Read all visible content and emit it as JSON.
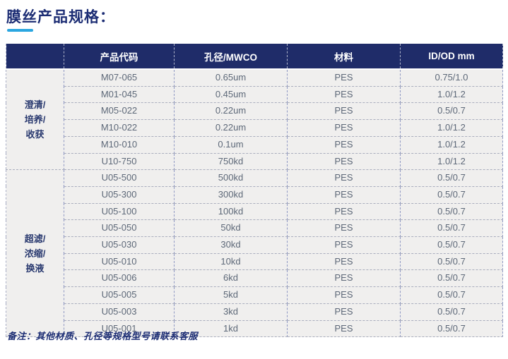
{
  "page": {
    "title": "膜丝产品规格：",
    "note": "备注：其他材质、孔径等规格型号请联系客服"
  },
  "table": {
    "columns": [
      "产品代码",
      "孔径/MWCO",
      "材料",
      "ID/OD mm"
    ],
    "groups": [
      {
        "label": "澄清/培养/收获",
        "label_lines": [
          "澄清/",
          "培养/",
          "收获"
        ],
        "rows": [
          {
            "code": "M07-065",
            "pore": "0.65um",
            "material": "PES",
            "id_od": "0.75/1.0"
          },
          {
            "code": "M01-045",
            "pore": "0.45um",
            "material": "PES",
            "id_od": "1.0/1.2"
          },
          {
            "code": "M05-022",
            "pore": "0.22um",
            "material": "PES",
            "id_od": "0.5/0.7"
          },
          {
            "code": "M10-022",
            "pore": "0.22um",
            "material": "PES",
            "id_od": "1.0/1.2"
          },
          {
            "code": "M10-010",
            "pore": "0.1um",
            "material": "PES",
            "id_od": "1.0/1.2"
          },
          {
            "code": "U10-750",
            "pore": "750kd",
            "material": "PES",
            "id_od": "1.0/1.2"
          }
        ]
      },
      {
        "label": "超滤/浓缩/换液",
        "label_lines": [
          "超滤/",
          "浓缩/",
          "换液"
        ],
        "rows": [
          {
            "code": "U05-500",
            "pore": "500kd",
            "material": "PES",
            "id_od": "0.5/0.7"
          },
          {
            "code": "U05-300",
            "pore": "300kd",
            "material": "PES",
            "id_od": "0.5/0.7"
          },
          {
            "code": "U05-100",
            "pore": "100kd",
            "material": "PES",
            "id_od": "0.5/0.7"
          },
          {
            "code": "U05-050",
            "pore": "50kd",
            "material": "PES",
            "id_od": "0.5/0.7"
          },
          {
            "code": "U05-030",
            "pore": "30kd",
            "material": "PES",
            "id_od": "0.5/0.7"
          },
          {
            "code": "U05-010",
            "pore": "10kd",
            "material": "PES",
            "id_od": "0.5/0.7"
          },
          {
            "code": "U05-006",
            "pore": "6kd",
            "material": "PES",
            "id_od": "0.5/0.7"
          },
          {
            "code": "U05-005",
            "pore": "5kd",
            "material": "PES",
            "id_od": "0.5/0.7"
          },
          {
            "code": "U05-003",
            "pore": "3kd",
            "material": "PES",
            "id_od": "0.5/0.7"
          },
          {
            "code": "U05-001",
            "pore": "1kd",
            "material": "PES",
            "id_od": "0.5/0.7"
          }
        ]
      }
    ]
  },
  "colors": {
    "header_bg": "#1f2c69",
    "header_text": "#ffffff",
    "title_text": "#1c2d74",
    "title_underline": "#2aa6e0",
    "body_bg": "#f0efee",
    "body_text": "#5d6878",
    "group_label_text": "#29396f",
    "dashed_border_h": "#a9adbd",
    "dashed_border_v": "#8f98c3"
  }
}
